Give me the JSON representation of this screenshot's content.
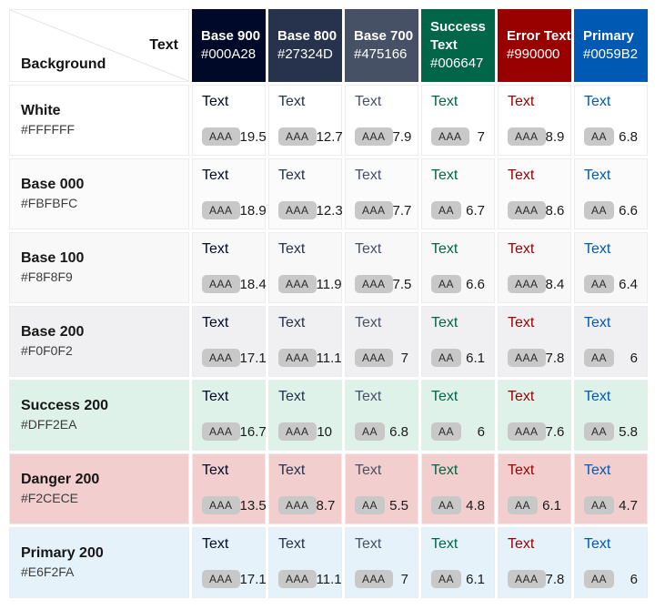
{
  "sample_label": "Text",
  "corner": {
    "text_label": "Text",
    "background_label": "Background"
  },
  "styles": {
    "badge_bg": "#C8C8C8",
    "cell_border": "#ECECEE",
    "diagonal_line": "#E3E3E5"
  },
  "chart_data": {
    "type": "table",
    "columns": [
      {
        "name": "Base 900",
        "hex": "#000A28"
      },
      {
        "name": "Base 800",
        "hex": "#27324D"
      },
      {
        "name": "Base 700",
        "hex": "#475166"
      },
      {
        "name": "Success Text",
        "hex": "#006647"
      },
      {
        "name": "Error Text",
        "hex": "#990000"
      },
      {
        "name": "Primary",
        "hex": "#0059B2"
      }
    ],
    "rows": [
      {
        "name": "White",
        "hex": "#FFFFFF",
        "cells": [
          {
            "level": "AAA",
            "ratio": "19.5"
          },
          {
            "level": "AAA",
            "ratio": "12.7"
          },
          {
            "level": "AAA",
            "ratio": "7.9"
          },
          {
            "level": "AAA",
            "ratio": "7"
          },
          {
            "level": "AAA",
            "ratio": "8.9"
          },
          {
            "level": "AA",
            "ratio": "6.8"
          }
        ]
      },
      {
        "name": "Base 000",
        "hex": "#FBFBFC",
        "cells": [
          {
            "level": "AAA",
            "ratio": "18.9"
          },
          {
            "level": "AAA",
            "ratio": "12.3"
          },
          {
            "level": "AAA",
            "ratio": "7.7"
          },
          {
            "level": "AA",
            "ratio": "6.7"
          },
          {
            "level": "AAA",
            "ratio": "8.6"
          },
          {
            "level": "AA",
            "ratio": "6.6"
          }
        ]
      },
      {
        "name": "Base 100",
        "hex": "#F8F8F9",
        "cells": [
          {
            "level": "AAA",
            "ratio": "18.4"
          },
          {
            "level": "AAA",
            "ratio": "11.9"
          },
          {
            "level": "AAA",
            "ratio": "7.5"
          },
          {
            "level": "AA",
            "ratio": "6.6"
          },
          {
            "level": "AAA",
            "ratio": "8.4"
          },
          {
            "level": "AA",
            "ratio": "6.4"
          }
        ]
      },
      {
        "name": "Base 200",
        "hex": "#F0F0F2",
        "cells": [
          {
            "level": "AAA",
            "ratio": "17.1"
          },
          {
            "level": "AAA",
            "ratio": "11.1"
          },
          {
            "level": "AAA",
            "ratio": "7"
          },
          {
            "level": "AA",
            "ratio": "6.1"
          },
          {
            "level": "AAA",
            "ratio": "7.8"
          },
          {
            "level": "AA",
            "ratio": "6"
          }
        ]
      },
      {
        "name": "Success 200",
        "hex": "#DFF2EA",
        "cells": [
          {
            "level": "AAA",
            "ratio": "16.7"
          },
          {
            "level": "AAA",
            "ratio": "10"
          },
          {
            "level": "AA",
            "ratio": "6.8"
          },
          {
            "level": "AA",
            "ratio": "6"
          },
          {
            "level": "AAA",
            "ratio": "7.6"
          },
          {
            "level": "AA",
            "ratio": "5.8"
          }
        ]
      },
      {
        "name": "Danger 200",
        "hex": "#F2CECE",
        "cells": [
          {
            "level": "AAA",
            "ratio": "13.5"
          },
          {
            "level": "AAA",
            "ratio": "8.7"
          },
          {
            "level": "AA",
            "ratio": "5.5"
          },
          {
            "level": "AA",
            "ratio": "4.8"
          },
          {
            "level": "AA",
            "ratio": "6.1"
          },
          {
            "level": "AA",
            "ratio": "4.7"
          }
        ]
      },
      {
        "name": "Primary 200",
        "hex": "#E6F2FA",
        "cells": [
          {
            "level": "AAA",
            "ratio": "17.1"
          },
          {
            "level": "AAA",
            "ratio": "11.1"
          },
          {
            "level": "AAA",
            "ratio": "7"
          },
          {
            "level": "AA",
            "ratio": "6.1"
          },
          {
            "level": "AAA",
            "ratio": "7.8"
          },
          {
            "level": "AA",
            "ratio": "6"
          }
        ]
      }
    ]
  }
}
